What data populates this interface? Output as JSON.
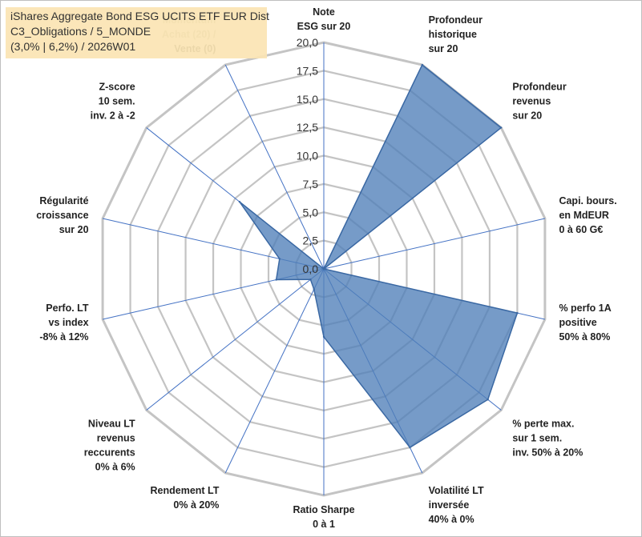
{
  "title_lines": [
    "iShares Aggregate Bond ESG UCITS ETF EUR Dist",
    "C3_Obligations / 5_MONDE",
    "(3,0% | 6,2%) / 2026W01"
  ],
  "colors": {
    "fill": "#4f7fb8",
    "stroke": "#3a68a3",
    "grid": "#c4c4c4",
    "spoke": "#4472c4",
    "title_bg": "#fbe5b4"
  },
  "chart_data": {
    "type": "radar",
    "rlim": [
      0,
      20
    ],
    "ticks": [
      "0,0",
      "2,5",
      "5,0",
      "7,5",
      "10,0",
      "12,5",
      "15,0",
      "17,5",
      "20,0"
    ],
    "tick_values": [
      0,
      2.5,
      5,
      7.5,
      10,
      12.5,
      15,
      17.5,
      20
    ],
    "categories": [
      {
        "lines": [
          "Note",
          "ESG sur 20"
        ],
        "value": 0
      },
      {
        "lines": [
          "Profondeur",
          "historique",
          "sur 20"
        ],
        "value": 20
      },
      {
        "lines": [
          "Profondeur",
          "revenus",
          "sur 20"
        ],
        "value": 20
      },
      {
        "lines": [
          "Capi. bours.",
          "en MdEUR",
          "0 à 60 G€"
        ],
        "value": 0
      },
      {
        "lines": [
          "% perfo 1A",
          "positive",
          "50% à 80%"
        ],
        "value": 17.5
      },
      {
        "lines": [
          "% perte max.",
          "sur 1 sem.",
          "inv. 50% à 20%"
        ],
        "value": 18.5
      },
      {
        "lines": [
          "Volatilité LT",
          "inversée",
          "40% à 0%"
        ],
        "value": 17.5
      },
      {
        "lines": [
          "Ratio Sharpe",
          "0 à 1"
        ],
        "value": 6
      },
      {
        "lines": [
          "Rendement LT",
          "0% à 20%"
        ],
        "value": 2
      },
      {
        "lines": [
          "Niveau LT",
          "revenus",
          "reccurents",
          "0% à 6%"
        ],
        "value": 1.5
      },
      {
        "lines": [
          "Perfo. LT",
          "vs index",
          "-8% à 12%"
        ],
        "value": 4.3
      },
      {
        "lines": [
          "Régularité",
          "croissance",
          "sur 20"
        ],
        "value": 4
      },
      {
        "lines": [
          "Z-score",
          "10 sem.",
          "inv. 2 à -2"
        ],
        "value": 9.5
      },
      {
        "lines": [
          "Momentum",
          "Achat (20) /",
          "Vente (0)"
        ],
        "value": 0
      }
    ]
  }
}
